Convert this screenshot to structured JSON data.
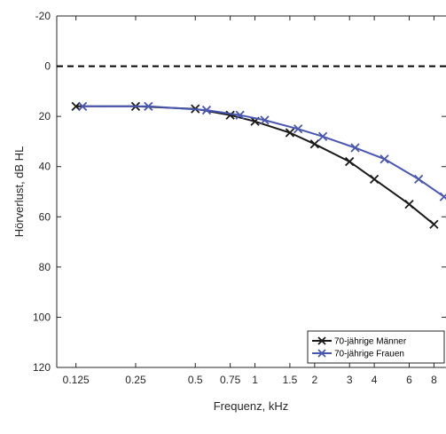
{
  "chart_data": {
    "type": "line",
    "xlabel": "Frequenz, kHz",
    "ylabel": "Hörverlust, dB HL",
    "x_scale": "log",
    "x_ticks": [
      0.125,
      0.25,
      0.5,
      0.75,
      1,
      1.5,
      2,
      3,
      4,
      6,
      8
    ],
    "x_tick_labels": [
      "0.125",
      "0.25",
      "0.5",
      "0.75",
      "1",
      "1.5",
      "2",
      "3",
      "4",
      "6",
      "8"
    ],
    "xlim": [
      0.1,
      9.2
    ],
    "y_ticks": [
      -20,
      0,
      20,
      40,
      60,
      80,
      100,
      120
    ],
    "y_tick_labels": [
      "-20",
      "0",
      "20",
      "40",
      "60",
      "80",
      "100",
      "120"
    ],
    "ylim": [
      -20,
      120
    ],
    "y_reversed": true,
    "grid": false,
    "reference_line": {
      "y": 0,
      "style": "dashed",
      "color": "#000000"
    },
    "legend_position": "bottom-right",
    "series": [
      {
        "name": "70-jährige Männer",
        "color": "#1a1a1a",
        "marker": "x",
        "x": [
          0.125,
          0.25,
          0.5,
          0.75,
          1,
          1.5,
          2,
          3,
          4,
          6,
          8
        ],
        "y": [
          16,
          16,
          17,
          19.5,
          22,
          26.5,
          31,
          38,
          45,
          55,
          63
        ]
      },
      {
        "name": "70-jährige Frauen",
        "color": "#4a57b0",
        "marker": "x",
        "x": [
          0.135,
          0.29,
          0.57,
          0.84,
          1.12,
          1.65,
          2.2,
          3.2,
          4.5,
          6.7,
          9.0
        ],
        "y": [
          16,
          16,
          17.5,
          19.5,
          21.5,
          25,
          28,
          32.5,
          37,
          45,
          52
        ]
      }
    ]
  }
}
